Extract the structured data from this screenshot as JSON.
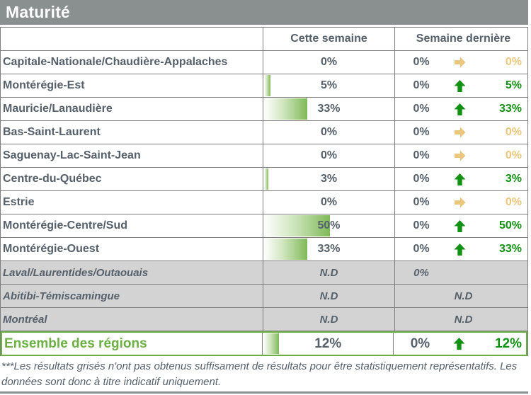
{
  "title": "Maturité",
  "columns": {
    "this_week": "Cette semaine",
    "last_week": "Semaine dernière"
  },
  "rows": [
    {
      "region": "Capitale-Nationale/Chaudière-Appalaches",
      "this_week": "0%",
      "bar": 0,
      "last_prev": "0%",
      "trend": "flat",
      "change": "0%",
      "grayed": false
    },
    {
      "region": "Montérégie-Est",
      "this_week": "5%",
      "bar": 5,
      "last_prev": "0%",
      "trend": "up",
      "change": "5%",
      "grayed": false
    },
    {
      "region": "Mauricie/Lanaudière",
      "this_week": "33%",
      "bar": 33,
      "last_prev": "0%",
      "trend": "up",
      "change": "33%",
      "grayed": false
    },
    {
      "region": "Bas-Saint-Laurent",
      "this_week": "0%",
      "bar": 0,
      "last_prev": "0%",
      "trend": "flat",
      "change": "0%",
      "grayed": false
    },
    {
      "region": "Saguenay-Lac-Saint-Jean",
      "this_week": "0%",
      "bar": 0,
      "last_prev": "0%",
      "trend": "flat",
      "change": "0%",
      "grayed": false
    },
    {
      "region": "Centre-du-Québec",
      "this_week": "3%",
      "bar": 3,
      "last_prev": "0%",
      "trend": "up",
      "change": "3%",
      "grayed": false
    },
    {
      "region": "Estrie",
      "this_week": "0%",
      "bar": 0,
      "last_prev": "0%",
      "trend": "flat",
      "change": "0%",
      "grayed": false
    },
    {
      "region": "Montérégie-Centre/Sud",
      "this_week": "50%",
      "bar": 50,
      "last_prev": "0%",
      "trend": "up",
      "change": "50%",
      "grayed": false
    },
    {
      "region": "Montérégie-Ouest",
      "this_week": "33%",
      "bar": 33,
      "last_prev": "0%",
      "trend": "up",
      "change": "33%",
      "grayed": false
    },
    {
      "region": "Laval/Laurentides/Outaouais",
      "this_week": "N.D",
      "bar": null,
      "last_prev": "0%",
      "trend": null,
      "change": null,
      "grayed": true
    },
    {
      "region": "Abitibi-Témiscamingue",
      "this_week": "N.D",
      "bar": null,
      "last_center": "N.D",
      "grayed": true
    },
    {
      "region": "Montréal",
      "this_week": "N.D",
      "bar": null,
      "last_center": "N.D",
      "grayed": true
    }
  ],
  "total": {
    "region": "Ensemble des régions",
    "this_week": "12%",
    "bar": 12,
    "last_prev": "0%",
    "trend": "up",
    "change": "12%"
  },
  "footnote": "***Les résultats grisés n'ont pas obtenus suffisament de résultats pour être statistiquement représentatifs. Les données sont donc à titre indicatif uniquement.",
  "colors": {
    "header_bg": "#8a8f8f",
    "text_slate": "#55606b",
    "trend_up_green": "#129212",
    "trend_flat_gold": "#ebc77d",
    "bar_green": "#7fba58",
    "total_green": "#6cb044",
    "grayed_bg": "#d3d3d3",
    "border_gray": "#7f7f7f"
  },
  "chart_data": {
    "type": "table",
    "title": "Maturité",
    "categories": [
      "Capitale-Nationale/Chaudière-Appalaches",
      "Montérégie-Est",
      "Mauricie/Lanaudière",
      "Bas-Saint-Laurent",
      "Saguenay-Lac-Saint-Jean",
      "Centre-du-Québec",
      "Estrie",
      "Montérégie-Centre/Sud",
      "Montérégie-Ouest",
      "Laval/Laurentides/Outaouais",
      "Abitibi-Témiscamingue",
      "Montréal",
      "Ensemble des régions"
    ],
    "series": [
      {
        "name": "Cette semaine (%)",
        "values": [
          0,
          5,
          33,
          0,
          0,
          3,
          0,
          50,
          33,
          null,
          null,
          null,
          12
        ]
      },
      {
        "name": "Semaine dernière (%)",
        "values": [
          0,
          0,
          0,
          0,
          0,
          0,
          0,
          0,
          0,
          0,
          null,
          null,
          0
        ]
      }
    ],
    "trends": [
      "flat",
      "up",
      "up",
      "flat",
      "flat",
      "up",
      "flat",
      "up",
      "up",
      null,
      null,
      null,
      "up"
    ],
    "bar_scale_max": 100,
    "notes": "Bars in 'Cette semaine' column are white-to-green horizontal gradients sized to percent; grayed rows = N.D (not statistically representative)."
  }
}
